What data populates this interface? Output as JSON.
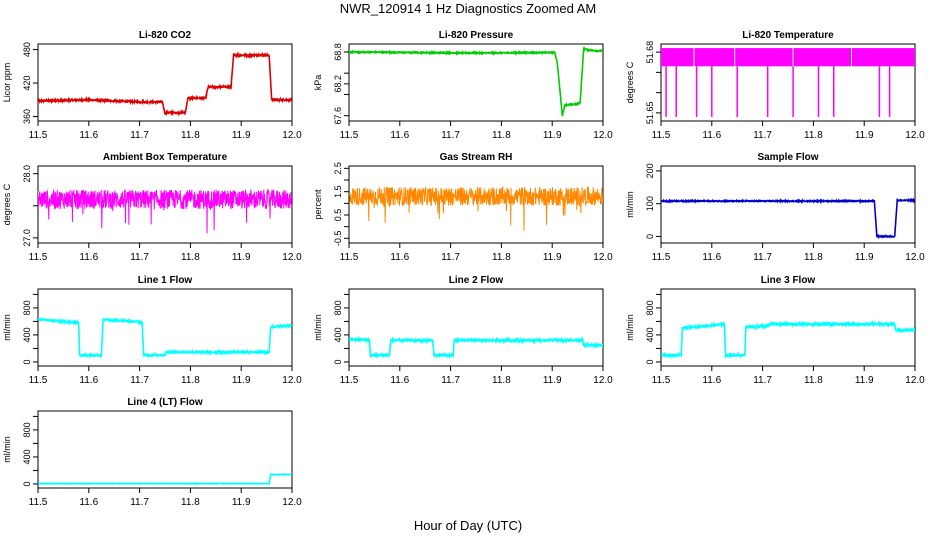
{
  "page": {
    "title": "NWR_120914  1 Hz Diagnostics Zoomed AM",
    "xlabel": "Hour of Day (UTC)"
  },
  "chart_data": [
    {
      "type": "line",
      "title": "Li-820 CO2",
      "xlabel": "",
      "ylabel": "Licor ppm",
      "color": "#dd0000",
      "xlim": [
        11.5,
        12.0
      ],
      "ylim": [
        352,
        490
      ],
      "yticks": [
        360,
        420,
        480
      ],
      "noise": 1.5,
      "style": "step",
      "series": [
        {
          "x": [
            11.5,
            11.6,
            11.7,
            11.745,
            11.75,
            11.755,
            11.79,
            11.795,
            11.83,
            11.835,
            11.88,
            11.885,
            11.955,
            11.96,
            12.0
          ],
          "y": [
            388,
            390,
            386,
            386,
            365,
            367,
            367,
            393,
            393,
            413,
            413,
            470,
            470,
            390,
            390
          ]
        }
      ]
    },
    {
      "type": "line",
      "title": "Li-820 Pressure",
      "xlabel": "",
      "ylabel": "kPa",
      "color": "#00cc00",
      "xlim": [
        11.5,
        12.0
      ],
      "ylim": [
        67.5,
        68.95
      ],
      "yticks": [
        67.6,
        68.2,
        68.8
      ],
      "ytickLabels": [
        "67.6",
        "68.2",
        "68.8"
      ],
      "extraTicks": [
        68.0,
        68.4
      ],
      "noise": 0.01,
      "style": "step",
      "series": [
        {
          "x": [
            11.5,
            11.75,
            11.905,
            11.91,
            11.92,
            11.925,
            11.95,
            11.955,
            11.962,
            11.97,
            11.99,
            12.0
          ],
          "y": [
            68.8,
            68.78,
            68.79,
            68.6,
            67.6,
            67.8,
            67.82,
            67.85,
            68.86,
            68.84,
            68.82,
            68.82
          ]
        }
      ]
    },
    {
      "type": "line",
      "title": "Li-820 Temperature",
      "xlabel": "",
      "ylabel": "degrees C",
      "color": "#ff00ff",
      "xlim": [
        11.5,
        12.0
      ],
      "ylim": [
        51.646,
        51.684
      ],
      "yticks": [
        51.65,
        51.68
      ],
      "extraTicks": [
        51.66,
        51.67
      ],
      "ytickLabels": [
        "51.65",
        "51.68"
      ],
      "noise": 0,
      "style": "band",
      "band": [
        51.673,
        51.682
      ],
      "dips": [
        11.51,
        11.53,
        11.57,
        11.6,
        11.65,
        11.71,
        11.76,
        11.81,
        11.84,
        11.93,
        11.95
      ],
      "dipTo": 51.648,
      "series": [
        {
          "x": [
            11.5,
            12.0
          ],
          "y": [
            51.673,
            51.682
          ]
        }
      ]
    },
    {
      "type": "line",
      "title": "Ambient Box Temperature",
      "xlabel": "",
      "ylabel": "degrees C",
      "color": "#ff00ff",
      "xlim": [
        11.5,
        12.0
      ],
      "ylim": [
        26.92,
        28.12
      ],
      "yticks": [
        27.0,
        28.0
      ],
      "ytickLabels": [
        "27.0",
        "28.0"
      ],
      "extraTicks": [
        27.5
      ],
      "noise": 0.15,
      "style": "noise",
      "series": [
        {
          "x": [
            11.5,
            12.0
          ],
          "y": [
            27.6,
            27.6
          ]
        }
      ]
    },
    {
      "type": "line",
      "title": "Gas Stream RH",
      "xlabel": "",
      "ylabel": "percent",
      "color": "#ff8800",
      "xlim": [
        11.5,
        12.0
      ],
      "ylim": [
        -0.7,
        2.6
      ],
      "yticks": [
        -0.5,
        0.5,
        1.5,
        2.5
      ],
      "ytickLabels": [
        "-0.5",
        "0.5",
        "1.5",
        "2.5"
      ],
      "extraTicks": [
        0.0,
        1.0,
        2.0
      ],
      "noise": 0.4,
      "style": "noise",
      "series": [
        {
          "x": [
            11.5,
            12.0
          ],
          "y": [
            1.3,
            1.3
          ]
        }
      ]
    },
    {
      "type": "line",
      "title": "Sample Flow",
      "xlabel": "",
      "ylabel": "ml/min",
      "color": "#0000cc",
      "xlim": [
        11.5,
        12.0
      ],
      "ylim": [
        -20,
        215
      ],
      "yticks": [
        0,
        100,
        200
      ],
      "noise": 1.5,
      "style": "step",
      "series": [
        {
          "x": [
            11.5,
            11.92,
            11.925,
            11.96,
            11.965,
            12.0
          ],
          "y": [
            108,
            108,
            0,
            0,
            110,
            110
          ]
        }
      ]
    },
    {
      "type": "line",
      "title": "Line 1 Flow",
      "xlabel": "",
      "ylabel": "ml/min",
      "color": "#00ffff",
      "xlim": [
        11.5,
        12.0
      ],
      "ylim": [
        -60,
        1080
      ],
      "yticks": [
        0,
        400,
        800
      ],
      "extraTicks": [
        200,
        600,
        1000
      ],
      "noise": 12,
      "style": "step",
      "series": [
        {
          "x": [
            11.5,
            11.58,
            11.582,
            11.625,
            11.628,
            11.705,
            11.708,
            11.75,
            11.752,
            11.955,
            11.958,
            12.0
          ],
          "y": [
            630,
            580,
            100,
            100,
            630,
            590,
            100,
            100,
            145,
            145,
            520,
            540
          ]
        }
      ]
    },
    {
      "type": "line",
      "title": "Line 2 Flow",
      "xlabel": "",
      "ylabel": "ml/min",
      "color": "#00ffff",
      "xlim": [
        11.5,
        12.0
      ],
      "ylim": [
        -60,
        1080
      ],
      "yticks": [
        0,
        400,
        800
      ],
      "extraTicks": [
        200,
        600,
        1000
      ],
      "noise": 15,
      "style": "step",
      "series": [
        {
          "x": [
            11.5,
            11.54,
            11.542,
            11.58,
            11.582,
            11.665,
            11.667,
            11.705,
            11.707,
            11.96,
            11.962,
            12.0
          ],
          "y": [
            330,
            330,
            100,
            100,
            320,
            320,
            100,
            100,
            320,
            320,
            250,
            250
          ]
        }
      ]
    },
    {
      "type": "line",
      "title": "Line 3 Flow",
      "xlabel": "",
      "ylabel": "ml/min",
      "color": "#00ffff",
      "xlim": [
        11.5,
        12.0
      ],
      "ylim": [
        -60,
        1080
      ],
      "yticks": [
        0,
        400,
        800
      ],
      "extraTicks": [
        200,
        600,
        1000
      ],
      "noise": 15,
      "style": "step",
      "series": [
        {
          "x": [
            11.5,
            11.54,
            11.542,
            11.625,
            11.627,
            11.665,
            11.667,
            11.71,
            11.712,
            11.96,
            11.962,
            12.0
          ],
          "y": [
            100,
            100,
            500,
            560,
            100,
            100,
            520,
            530,
            560,
            560,
            470,
            470
          ]
        }
      ]
    },
    {
      "type": "line",
      "title": "Line 4 (LT) Flow",
      "xlabel": "",
      "ylabel": "ml/min",
      "color": "#00ffff",
      "xlim": [
        11.5,
        12.0
      ],
      "ylim": [
        -60,
        1080
      ],
      "yticks": [
        0,
        400,
        800
      ],
      "extraTicks": [
        200,
        600,
        1000
      ],
      "noise": 3,
      "style": "step",
      "series": [
        {
          "x": [
            11.5,
            11.955,
            11.958,
            12.0
          ],
          "y": [
            5,
            5,
            140,
            140
          ]
        }
      ]
    }
  ],
  "xticks": [
    11.5,
    11.6,
    11.7,
    11.8,
    11.9,
    12.0
  ],
  "xtickLabels": [
    "11.5",
    "11.6",
    "11.7",
    "11.8",
    "11.9",
    "12.0"
  ]
}
